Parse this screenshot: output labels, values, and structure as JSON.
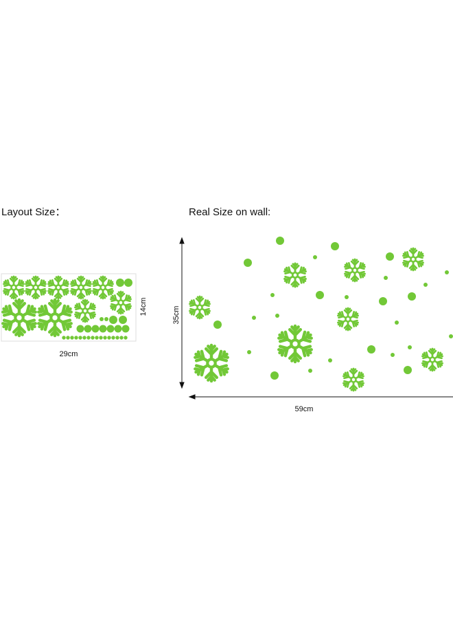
{
  "layout_panel": {
    "title": "Layout Size：",
    "width_label": "29cm",
    "height_label": "14cm"
  },
  "wall_panel": {
    "title": "Real Size on wall:",
    "height_label": "35cm",
    "width_label": "59cm"
  }
}
